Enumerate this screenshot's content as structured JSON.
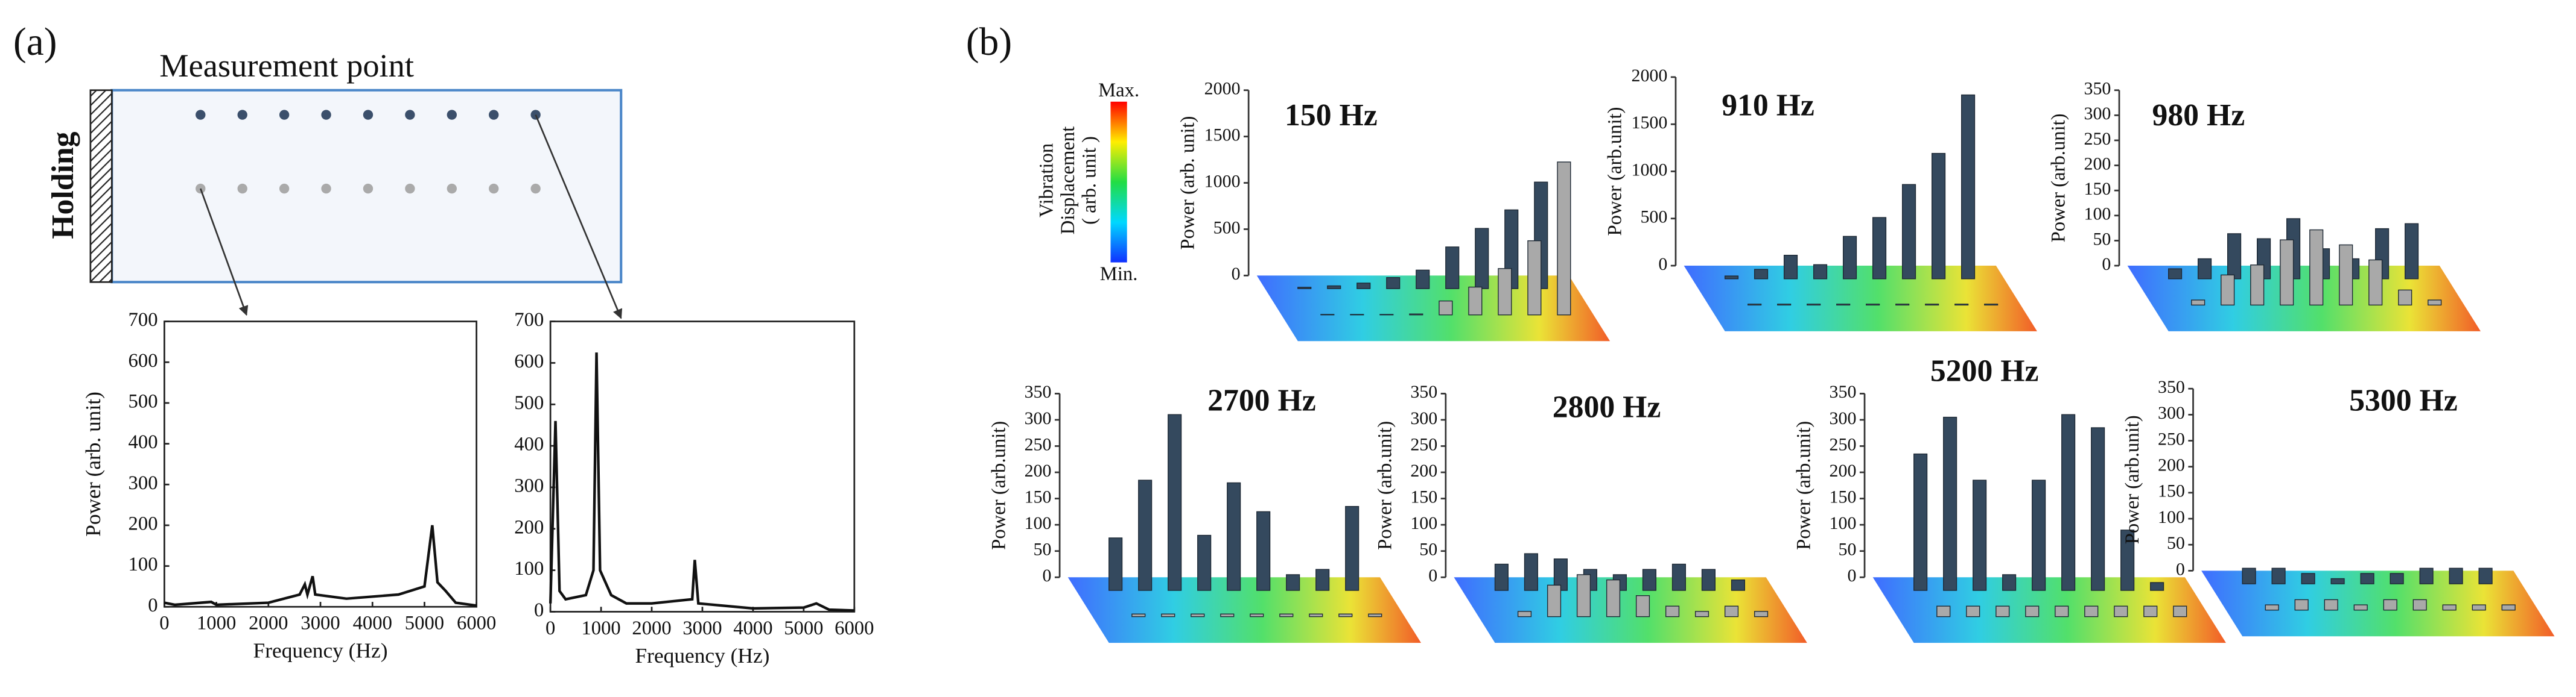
{
  "panel_a": {
    "label": "(a)",
    "measurement_label": "Measurement point",
    "holding_label": "Holding"
  },
  "panel_b": {
    "label": "(b)",
    "colorbar_title": [
      "Vibration",
      "Displacement",
      "( arb. unit )"
    ],
    "colorbar_max": "Max.",
    "colorbar_min": "Min."
  },
  "chart_data": [
    {
      "type": "line",
      "color": "#111111",
      "x": [
        0,
        200,
        900,
        1000,
        2000,
        2600,
        2700,
        2750,
        2850,
        2900,
        3500,
        4500,
        5000,
        5150,
        5250,
        5400,
        5600,
        6000
      ],
      "values": [
        10,
        5,
        12,
        5,
        10,
        30,
        55,
        30,
        75,
        30,
        20,
        30,
        50,
        200,
        60,
        40,
        10,
        3
      ],
      "xlim": [
        0,
        6000
      ],
      "ylim": [
        0,
        700
      ],
      "xticks": [
        0,
        1000,
        2000,
        3000,
        4000,
        5000,
        6000
      ],
      "yticks": [
        0,
        100,
        200,
        300,
        400,
        500,
        600,
        700
      ],
      "xlabel": "Frequency (Hz)",
      "ylabel": "Power (arb. unit)"
    },
    {
      "type": "line",
      "color": "#111111",
      "x": [
        0,
        100,
        180,
        300,
        700,
        850,
        910,
        980,
        1200,
        1500,
        2000,
        2800,
        2850,
        2920,
        4000,
        5000,
        5250,
        5500,
        6000
      ],
      "values": [
        20,
        460,
        50,
        30,
        40,
        100,
        625,
        100,
        40,
        20,
        20,
        30,
        125,
        20,
        8,
        10,
        20,
        5,
        3
      ],
      "xlim": [
        0,
        6000
      ],
      "ylim": [
        0,
        700
      ],
      "xticks": [
        0,
        1000,
        2000,
        3000,
        4000,
        5000,
        6000
      ],
      "yticks": [
        0,
        100,
        200,
        300,
        400,
        500,
        600,
        700
      ],
      "xlabel": "Frequency (Hz)"
    },
    {
      "type": "bar3d",
      "title": "150 Hz",
      "ylabel": "Power (arb. unit)",
      "ylim": [
        0,
        2000
      ],
      "yticks": [
        0,
        500,
        1000,
        1500,
        2000
      ],
      "series": [
        {
          "color": "#34495e",
          "values": [
            15,
            30,
            60,
            120,
            200,
            450,
            650,
            850,
            1150
          ]
        },
        {
          "color": "#a9a9a9",
          "values": [
            5,
            5,
            5,
            10,
            150,
            300,
            500,
            800,
            1650
          ]
        }
      ]
    },
    {
      "type": "bar3d",
      "title": "910 Hz",
      "ylabel": "Power (arb.unit)",
      "ylim": [
        0,
        2000
      ],
      "yticks": [
        0,
        500,
        1000,
        1500,
        2000
      ],
      "series": [
        {
          "color": "#34495e",
          "values": [
            30,
            100,
            250,
            150,
            450,
            650,
            1000,
            1330,
            1950
          ]
        },
        {
          "color": "#a9a9a9",
          "values": [
            10,
            10,
            10,
            10,
            10,
            10,
            10,
            10,
            10
          ]
        }
      ]
    },
    {
      "type": "bar3d",
      "title": "980 Hz",
      "ylabel": "Power (arb.unit)",
      "ylim": [
        0,
        350
      ],
      "yticks": [
        0,
        50,
        100,
        150,
        200,
        250,
        300,
        350
      ],
      "series": [
        {
          "color": "#34495e",
          "values": [
            20,
            40,
            90,
            80,
            120,
            60,
            40,
            100,
            110
          ]
        },
        {
          "color": "#a9a9a9",
          "values": [
            10,
            60,
            80,
            130,
            150,
            120,
            90,
            30,
            10
          ]
        }
      ]
    },
    {
      "type": "bar3d",
      "title": "2700 Hz",
      "ylabel": "Power (arb.unit)",
      "ylim": [
        0,
        350
      ],
      "yticks": [
        0,
        50,
        100,
        150,
        200,
        250,
        300,
        350
      ],
      "series": [
        {
          "color": "#34495e",
          "values": [
            100,
            210,
            335,
            105,
            205,
            150,
            30,
            40,
            160
          ]
        },
        {
          "color": "#a9a9a9",
          "values": [
            5,
            5,
            5,
            5,
            5,
            5,
            5,
            5,
            5
          ]
        }
      ]
    },
    {
      "type": "bar3d",
      "title": "2800 Hz",
      "ylabel": "Power (arb.unit)",
      "ylim": [
        0,
        350
      ],
      "yticks": [
        0,
        50,
        100,
        150,
        200,
        250,
        300,
        350
      ],
      "series": [
        {
          "color": "#34495e",
          "values": [
            50,
            70,
            60,
            40,
            30,
            40,
            50,
            40,
            20
          ]
        },
        {
          "color": "#a9a9a9",
          "values": [
            10,
            60,
            80,
            70,
            40,
            20,
            10,
            20,
            10
          ]
        }
      ]
    },
    {
      "type": "bar3d",
      "title": "5200 Hz",
      "ylabel": "Power (arb.unit)",
      "ylim": [
        0,
        350
      ],
      "yticks": [
        0,
        50,
        100,
        150,
        200,
        250,
        300,
        350
      ],
      "series": [
        {
          "color": "#34495e",
          "values": [
            260,
            330,
            210,
            30,
            210,
            335,
            310,
            115,
            15
          ]
        },
        {
          "color": "#a9a9a9",
          "values": [
            20,
            20,
            20,
            20,
            20,
            20,
            20,
            20,
            20
          ]
        }
      ]
    },
    {
      "type": "bar3d",
      "title": "5300 Hz",
      "ylabel": "Power (arb.unit)",
      "ylim": [
        0,
        350
      ],
      "yticks": [
        0,
        50,
        100,
        150,
        200,
        250,
        300,
        350
      ],
      "series": [
        {
          "color": "#34495e",
          "values": [
            30,
            30,
            20,
            10,
            20,
            20,
            30,
            30,
            30
          ]
        },
        {
          "color": "#a9a9a9",
          "values": [
            10,
            20,
            20,
            10,
            20,
            20,
            10,
            10,
            10
          ]
        }
      ]
    }
  ]
}
